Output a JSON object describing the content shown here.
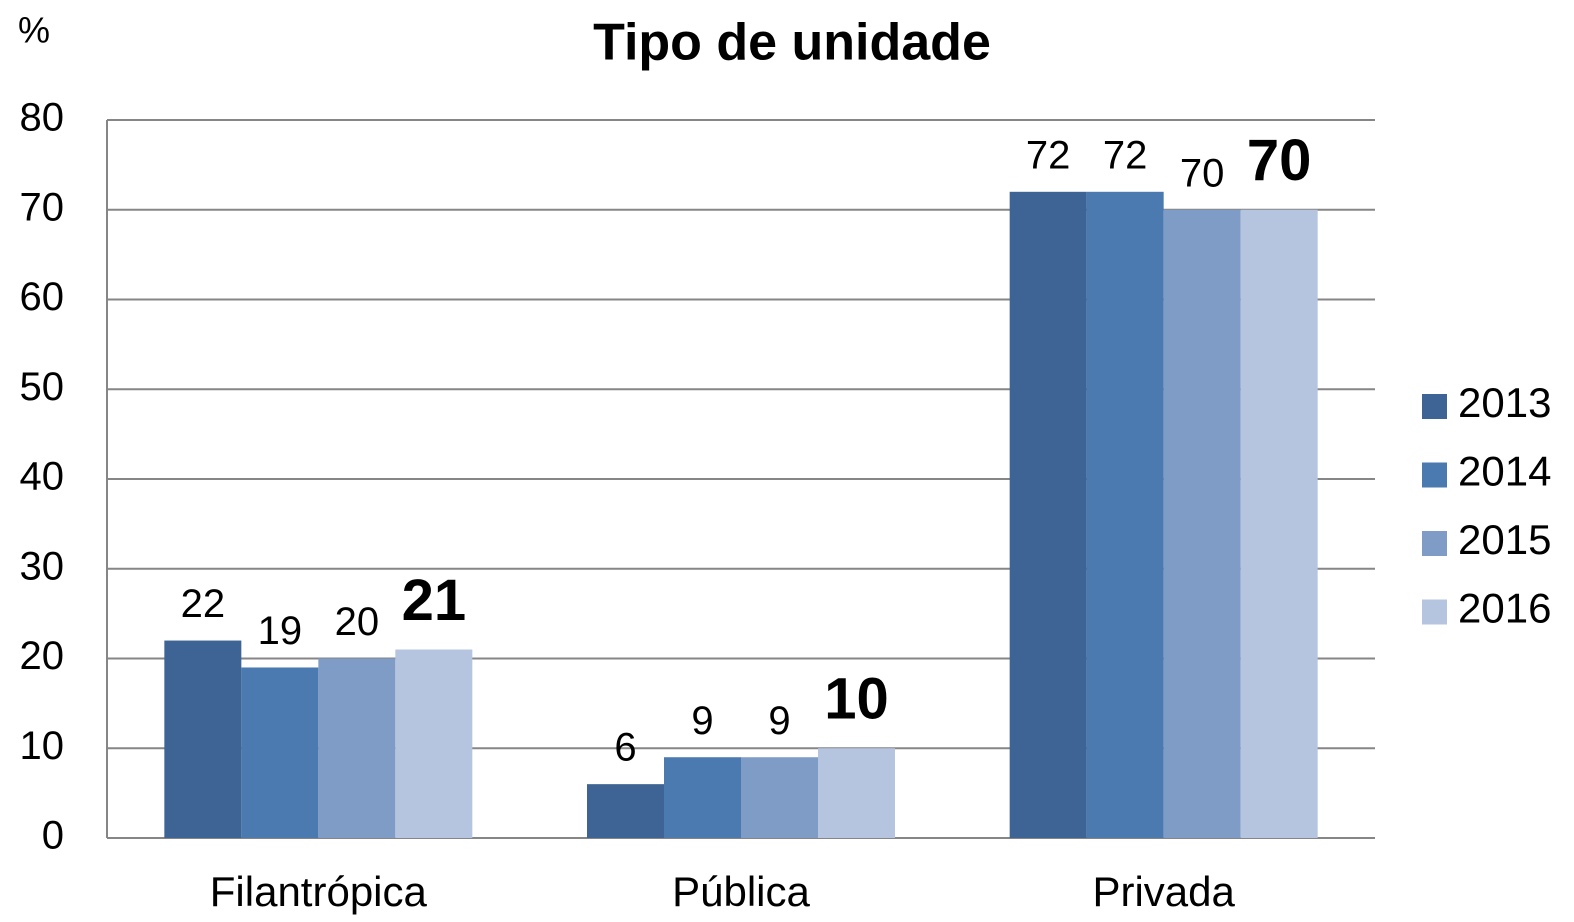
{
  "chart_data": {
    "type": "bar",
    "title": "Tipo de unidade",
    "y_label": "%",
    "categories": [
      "Filantrópica",
      "Pública",
      "Privada"
    ],
    "series": [
      {
        "name": "2013",
        "color": "#3d6494",
        "values": [
          22,
          6,
          72
        ]
      },
      {
        "name": "2014",
        "color": "#4a7ab0",
        "values": [
          19,
          9,
          72
        ]
      },
      {
        "name": "2015",
        "color": "#7f9cc6",
        "values": [
          20,
          9,
          70
        ]
      },
      {
        "name": "2016",
        "color": "#b5c4df",
        "values": [
          21,
          10,
          70
        ]
      }
    ],
    "ylim": [
      0,
      80
    ],
    "yticks": [
      0,
      10,
      20,
      30,
      40,
      50,
      60,
      70,
      80
    ],
    "grid": true,
    "legend": "right"
  }
}
